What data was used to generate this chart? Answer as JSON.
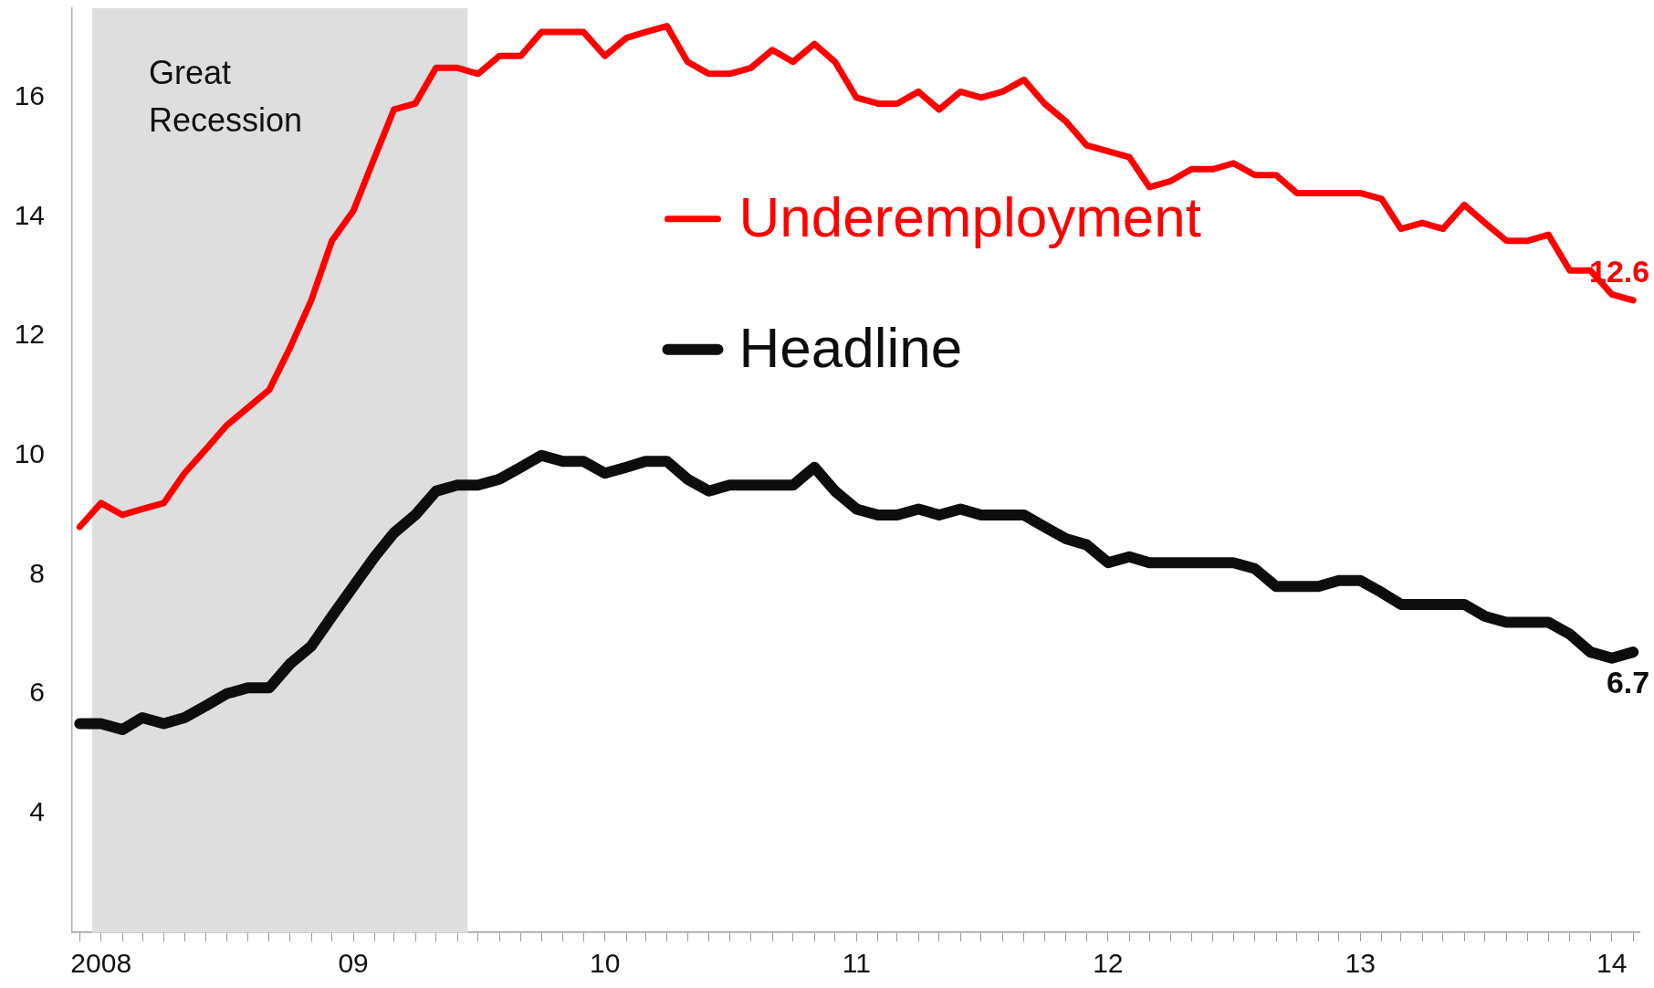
{
  "chart_data": {
    "type": "line",
    "x": [
      "2007-12",
      "2008-01",
      "2008-02",
      "2008-03",
      "2008-04",
      "2008-05",
      "2008-06",
      "2008-07",
      "2008-08",
      "2008-09",
      "2008-10",
      "2008-11",
      "2008-12",
      "2009-01",
      "2009-02",
      "2009-03",
      "2009-04",
      "2009-05",
      "2009-06",
      "2009-07",
      "2009-08",
      "2009-09",
      "2009-10",
      "2009-11",
      "2009-12",
      "2010-01",
      "2010-02",
      "2010-03",
      "2010-04",
      "2010-05",
      "2010-06",
      "2010-07",
      "2010-08",
      "2010-09",
      "2010-10",
      "2010-11",
      "2010-12",
      "2011-01",
      "2011-02",
      "2011-03",
      "2011-04",
      "2011-05",
      "2011-06",
      "2011-07",
      "2011-08",
      "2011-09",
      "2011-10",
      "2011-11",
      "2011-12",
      "2012-01",
      "2012-02",
      "2012-03",
      "2012-04",
      "2012-05",
      "2012-06",
      "2012-07",
      "2012-08",
      "2012-09",
      "2012-10",
      "2012-11",
      "2012-12",
      "2013-01",
      "2013-02",
      "2013-03",
      "2013-04",
      "2013-05",
      "2013-06",
      "2013-07",
      "2013-08",
      "2013-09",
      "2013-10",
      "2013-11",
      "2013-12",
      "2014-01",
      "2014-02"
    ],
    "series": [
      {
        "name": "Underemployment",
        "color": "#ff0000",
        "values": [
          8.8,
          9.2,
          9.0,
          9.1,
          9.2,
          9.7,
          10.1,
          10.5,
          10.8,
          11.1,
          11.8,
          12.6,
          13.6,
          14.1,
          15.0,
          15.8,
          15.9,
          16.5,
          16.5,
          16.4,
          16.7,
          16.7,
          17.1,
          17.1,
          17.1,
          16.7,
          17.0,
          17.1,
          17.2,
          16.6,
          16.4,
          16.4,
          16.5,
          16.8,
          16.6,
          16.9,
          16.6,
          16.0,
          15.9,
          15.9,
          16.1,
          15.8,
          16.1,
          16.0,
          16.1,
          16.3,
          15.9,
          15.6,
          15.2,
          15.1,
          15.0,
          14.5,
          14.6,
          14.8,
          14.8,
          14.9,
          14.7,
          14.7,
          14.4,
          14.4,
          14.4,
          14.4,
          14.3,
          13.8,
          13.9,
          13.8,
          14.2,
          13.9,
          13.6,
          13.6,
          13.7,
          13.1,
          13.1,
          12.7,
          12.6
        ],
        "value_labels": [
          null,
          null,
          null,
          null,
          null,
          null,
          null,
          null,
          null,
          null,
          null,
          null,
          null,
          null,
          null,
          null,
          null,
          null,
          null,
          null,
          null,
          null,
          null,
          null,
          null,
          null,
          null,
          null,
          null,
          null,
          null,
          null,
          null,
          null,
          null,
          null,
          null,
          null,
          null,
          null,
          null,
          null,
          null,
          null,
          null,
          null,
          null,
          null,
          null,
          null,
          null,
          null,
          null,
          null,
          null,
          null,
          null,
          null,
          null,
          null,
          null,
          null,
          null,
          null,
          null,
          null,
          null,
          null,
          null,
          null,
          null,
          null,
          null,
          null,
          "12.6"
        ]
      },
      {
        "name": "Headline",
        "color": "#0d0d0d",
        "values": [
          5.5,
          5.5,
          5.4,
          5.6,
          5.5,
          5.6,
          5.8,
          6.0,
          6.1,
          6.1,
          6.5,
          6.8,
          7.3,
          7.8,
          8.3,
          8.7,
          9.0,
          9.4,
          9.5,
          9.5,
          9.6,
          9.8,
          10.0,
          9.9,
          9.9,
          9.7,
          9.8,
          9.9,
          9.9,
          9.6,
          9.4,
          9.5,
          9.5,
          9.5,
          9.5,
          9.8,
          9.4,
          9.1,
          9.0,
          9.0,
          9.1,
          9.0,
          9.1,
          9.0,
          9.0,
          9.0,
          8.8,
          8.6,
          8.5,
          8.2,
          8.3,
          8.2,
          8.2,
          8.2,
          8.2,
          8.2,
          8.1,
          7.8,
          7.8,
          7.8,
          7.9,
          7.9,
          7.7,
          7.5,
          7.5,
          7.5,
          7.5,
          7.3,
          7.2,
          7.2,
          7.2,
          7.0,
          6.7,
          6.6,
          6.7
        ],
        "value_labels": [
          null,
          null,
          null,
          null,
          null,
          null,
          null,
          null,
          null,
          null,
          null,
          null,
          null,
          null,
          null,
          null,
          null,
          null,
          null,
          null,
          null,
          null,
          null,
          null,
          null,
          null,
          null,
          null,
          null,
          null,
          null,
          null,
          null,
          null,
          null,
          null,
          null,
          null,
          null,
          null,
          null,
          null,
          null,
          null,
          null,
          null,
          null,
          null,
          null,
          null,
          null,
          null,
          null,
          null,
          null,
          null,
          null,
          null,
          null,
          null,
          null,
          null,
          null,
          null,
          null,
          null,
          null,
          null,
          null,
          null,
          null,
          null,
          null,
          null,
          "6.7"
        ]
      }
    ],
    "xlim": [
      "2007-11-20",
      "2014-02-10"
    ],
    "xticks": [
      {
        "value": "2008-01",
        "label": "2008"
      },
      {
        "value": "2009-01",
        "label": "09"
      },
      {
        "value": "2010-01",
        "label": "10"
      },
      {
        "value": "2011-01",
        "label": "11"
      },
      {
        "value": "2012-01",
        "label": "12"
      },
      {
        "value": "2013-01",
        "label": "13"
      },
      {
        "value": "2014-01",
        "label": "14"
      },
      {
        "value": "2007-12-01",
        "label": null
      },
      {
        "value": "2008-01-01",
        "label": null
      },
      {
        "value": "2008-02-01",
        "label": null
      },
      {
        "value": "2008-03-01",
        "label": null
      },
      {
        "value": "2008-04-01",
        "label": null
      },
      {
        "value": "2008-05-01",
        "label": null
      },
      {
        "value": "2008-06-01",
        "label": null
      },
      {
        "value": "2008-07-01",
        "label": null
      },
      {
        "value": "2008-08-01",
        "label": null
      },
      {
        "value": "2008-09-01",
        "label": null
      },
      {
        "value": "2008-10-01",
        "label": null
      },
      {
        "value": "2008-11-01",
        "label": null
      },
      {
        "value": "2008-12-01",
        "label": null
      },
      {
        "value": "2009-01-01",
        "label": null
      },
      {
        "value": "2009-02-01",
        "label": null
      },
      {
        "value": "2009-03-01",
        "label": null
      },
      {
        "value": "2009-04-01",
        "label": null
      },
      {
        "value": "2009-05-01",
        "label": null
      },
      {
        "value": "2009-06-01",
        "label": null
      },
      {
        "value": "2009-07-01",
        "label": null
      },
      {
        "value": "2009-08-01",
        "label": null
      },
      {
        "value": "2009-09-01",
        "label": null
      },
      {
        "value": "2009-10-01",
        "label": null
      },
      {
        "value": "2009-11-01",
        "label": null
      },
      {
        "value": "2009-12-01",
        "label": null
      },
      {
        "value": "2010-01-01",
        "label": null
      },
      {
        "value": "2010-02-01",
        "label": null
      },
      {
        "value": "2010-03-01",
        "label": null
      },
      {
        "value": "2010-04-01",
        "label": null
      },
      {
        "value": "2010-05-01",
        "label": null
      },
      {
        "value": "2010-06-01",
        "label": null
      },
      {
        "value": "2010-07-01",
        "label": null
      },
      {
        "value": "2010-08-01",
        "label": null
      },
      {
        "value": "2010-09-01",
        "label": null
      },
      {
        "value": "2010-10-01",
        "label": null
      },
      {
        "value": "2010-11-01",
        "label": null
      },
      {
        "value": "2010-12-01",
        "label": null
      },
      {
        "value": "2011-01-01",
        "label": null
      },
      {
        "value": "2011-02-01",
        "label": null
      },
      {
        "value": "2011-03-01",
        "label": null
      },
      {
        "value": "2011-04-01",
        "label": null
      },
      {
        "value": "2011-05-01",
        "label": null
      },
      {
        "value": "2011-06-01",
        "label": null
      },
      {
        "value": "2011-07-01",
        "label": null
      },
      {
        "value": "2011-08-01",
        "label": null
      },
      {
        "value": "2011-09-01",
        "label": null
      },
      {
        "value": "2011-10-01",
        "label": null
      },
      {
        "value": "2011-11-01",
        "label": null
      },
      {
        "value": "2011-12-01",
        "label": null
      },
      {
        "value": "2012-01-01",
        "label": null
      },
      {
        "value": "2012-02-01",
        "label": null
      },
      {
        "value": "2012-03-01",
        "label": null
      },
      {
        "value": "2012-04-01",
        "label": null
      },
      {
        "value": "2012-05-01",
        "label": null
      },
      {
        "value": "2012-06-01",
        "label": null
      },
      {
        "value": "2012-07-01",
        "label": null
      },
      {
        "value": "2012-08-01",
        "label": null
      },
      {
        "value": "2012-09-01",
        "label": null
      },
      {
        "value": "2012-10-01",
        "label": null
      },
      {
        "value": "2012-11-01",
        "label": null
      },
      {
        "value": "2012-12-01",
        "label": null
      },
      {
        "value": "2013-01-01",
        "label": null
      },
      {
        "value": "2013-02-01",
        "label": null
      },
      {
        "value": "2013-03-01",
        "label": null
      },
      {
        "value": "2013-04-01",
        "label": null
      },
      {
        "value": "2013-05-01",
        "label": null
      },
      {
        "value": "2013-06-01",
        "label": null
      },
      {
        "value": "2013-07-01",
        "label": null
      },
      {
        "value": "2013-08-01",
        "label": null
      },
      {
        "value": "2013-09-01",
        "label": null
      },
      {
        "value": "2013-10-01",
        "label": null
      },
      {
        "value": "2013-11-01",
        "label": null
      },
      {
        "value": "2013-12-01",
        "label": null
      },
      {
        "value": "2014-01-01",
        "label": null
      },
      {
        "value": "2014-02-01",
        "label": null
      }
    ],
    "ylim": [
      2,
      17.5
    ],
    "yticks": [
      4,
      6,
      8,
      10,
      12,
      14,
      16
    ],
    "bands": [
      {
        "axis": "x",
        "from": "2007-12-19",
        "to": "2009-06-16",
        "label": "Great Recession",
        "color": "#dedede"
      }
    ],
    "legend": "top",
    "grid": false,
    "marker": "none",
    "line_style": "solid"
  }
}
